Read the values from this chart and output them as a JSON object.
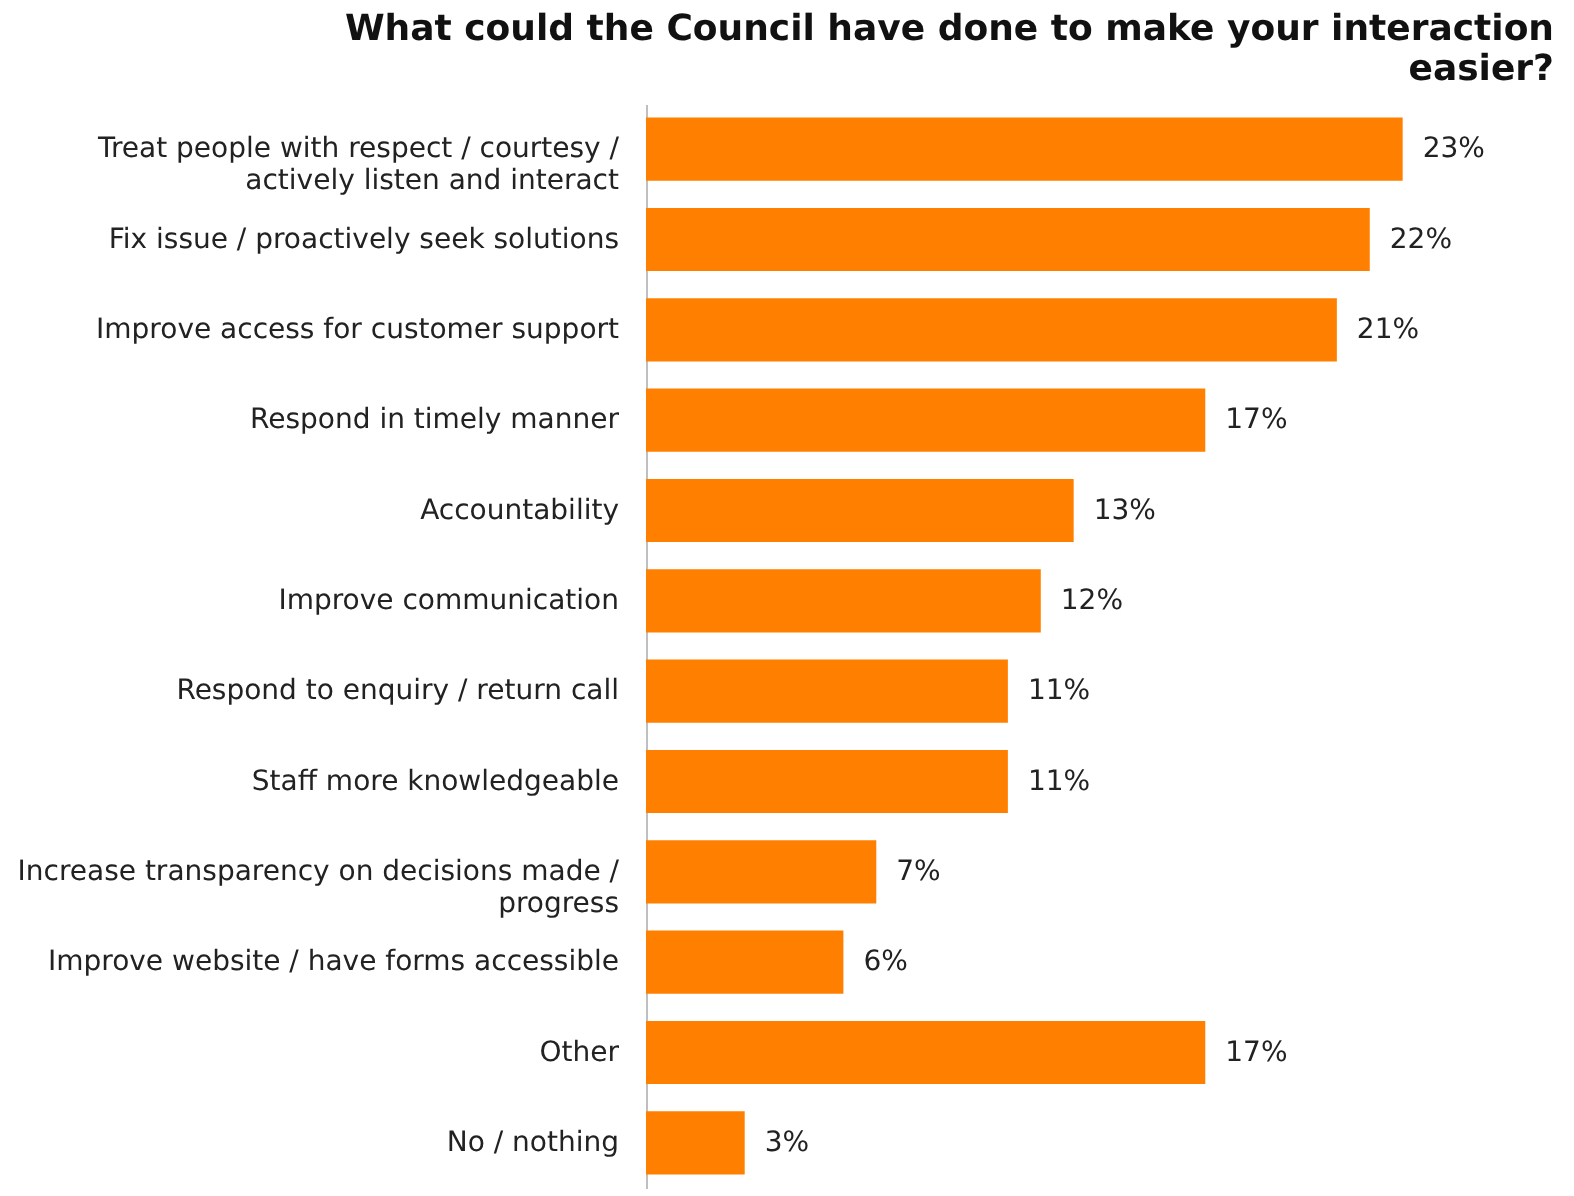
{
  "chart_data": {
    "type": "bar",
    "orientation": "horizontal",
    "title": "What could the Council have done to make your interaction easier?",
    "categories": [
      "Treat people with respect / courtesy / actively listen and interact",
      "Fix issue / proactively seek solutions",
      "Improve access for customer support",
      "Respond in timely manner",
      "Accountability",
      "Improve communication",
      "Respond to enquiry / return call",
      "Staff more knowledgeable",
      "Increase transparency on decisions made / progress",
      "Improve website / have forms accessible",
      "Other",
      "No / nothing"
    ],
    "values": [
      23,
      22,
      21,
      17,
      13,
      12,
      11,
      11,
      7,
      6,
      17,
      3
    ],
    "value_labels": [
      "23%",
      "22%",
      "21%",
      "17%",
      "13%",
      "12%",
      "11%",
      "11%",
      "7%",
      "6%",
      "17%",
      "3%"
    ],
    "color": "#ff8000",
    "grid": false
  }
}
